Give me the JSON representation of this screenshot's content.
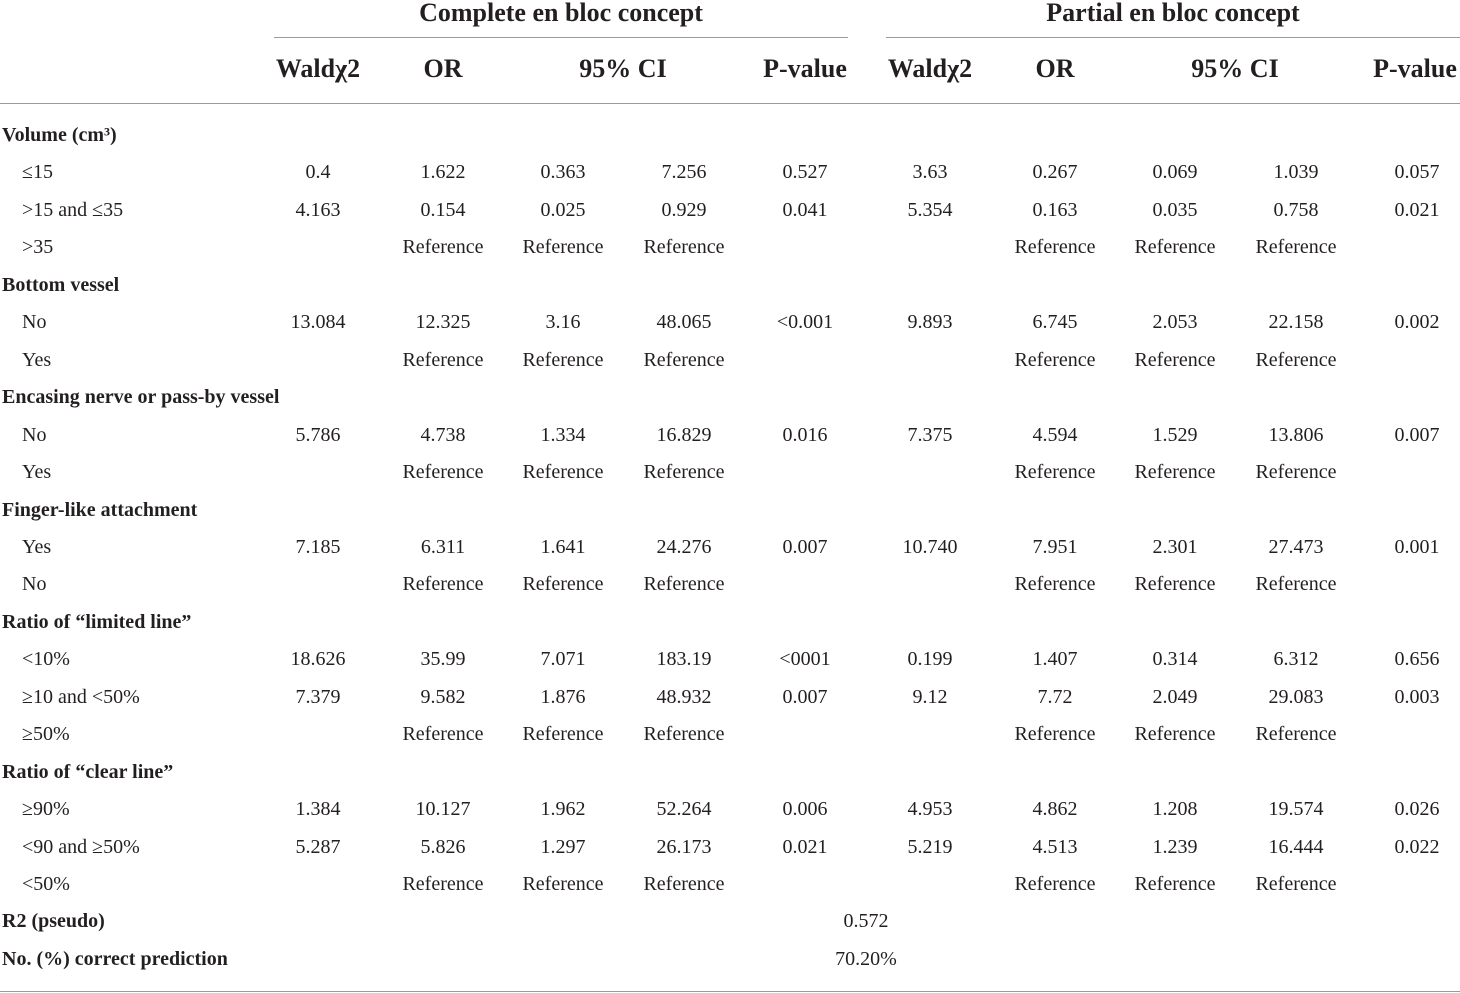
{
  "groups": [
    {
      "title": "Complete en bloc concept"
    },
    {
      "title": "Partial en bloc concept"
    }
  ],
  "column_headers": [
    "Waldχ2",
    "OR",
    "95% CI",
    "P-value",
    "Waldχ2",
    "OR",
    "95% CI",
    "P-value"
  ],
  "rows": [
    {
      "type": "section",
      "label": "Volume (cm³)"
    },
    {
      "type": "item",
      "label": "≤15",
      "values": [
        "0.4",
        "1.622",
        "0.363",
        "7.256",
        "0.527",
        "3.63",
        "0.267",
        "0.069",
        "1.039",
        "0.057"
      ]
    },
    {
      "type": "item",
      "label": ">15 and ≤35",
      "values": [
        "4.163",
        "0.154",
        "0.025",
        "0.929",
        "0.041",
        "5.354",
        "0.163",
        "0.035",
        "0.758",
        "0.021"
      ]
    },
    {
      "type": "item",
      "label": ">35",
      "values": [
        "",
        "Reference",
        "Reference",
        "Reference",
        "",
        "",
        "Reference",
        "Reference",
        "Reference",
        ""
      ]
    },
    {
      "type": "section",
      "label": "Bottom vessel"
    },
    {
      "type": "item",
      "label": "No",
      "values": [
        "13.084",
        "12.325",
        "3.16",
        "48.065",
        "<0.001",
        "9.893",
        "6.745",
        "2.053",
        "22.158",
        "0.002"
      ]
    },
    {
      "type": "item",
      "label": "Yes",
      "values": [
        "",
        "Reference",
        "Reference",
        "Reference",
        "",
        "",
        "Reference",
        "Reference",
        "Reference",
        ""
      ]
    },
    {
      "type": "section",
      "label": "Encasing nerve or pass-by vessel"
    },
    {
      "type": "item",
      "label": "No",
      "values": [
        "5.786",
        "4.738",
        "1.334",
        "16.829",
        "0.016",
        "7.375",
        "4.594",
        "1.529",
        "13.806",
        "0.007"
      ]
    },
    {
      "type": "item",
      "label": "Yes",
      "values": [
        "",
        "Reference",
        "Reference",
        "Reference",
        "",
        "",
        "Reference",
        "Reference",
        "Reference",
        ""
      ]
    },
    {
      "type": "section",
      "label": "Finger-like attachment"
    },
    {
      "type": "item",
      "label": "Yes",
      "values": [
        "7.185",
        "6.311",
        "1.641",
        "24.276",
        "0.007",
        "10.740",
        "7.951",
        "2.301",
        "27.473",
        "0.001"
      ]
    },
    {
      "type": "item",
      "label": "No",
      "values": [
        "",
        "Reference",
        "Reference",
        "Reference",
        "",
        "",
        "Reference",
        "Reference",
        "Reference",
        ""
      ]
    },
    {
      "type": "section",
      "label": "Ratio of “limited line”"
    },
    {
      "type": "item",
      "label": "<10%",
      "values": [
        "18.626",
        "35.99",
        "7.071",
        "183.19",
        "<0001",
        "0.199",
        "1.407",
        "0.314",
        "6.312",
        "0.656"
      ]
    },
    {
      "type": "item",
      "label": "≥10 and <50%",
      "values": [
        "7.379",
        "9.582",
        "1.876",
        "48.932",
        "0.007",
        "9.12",
        "7.72",
        "2.049",
        "29.083",
        "0.003"
      ]
    },
    {
      "type": "item",
      "label": "≥50%",
      "values": [
        "",
        "Reference",
        "Reference",
        "Reference",
        "",
        "",
        "Reference",
        "Reference",
        "Reference",
        ""
      ]
    },
    {
      "type": "section",
      "label": "Ratio of “clear line”"
    },
    {
      "type": "item",
      "label": "≥90%",
      "values": [
        "1.384",
        "10.127",
        "1.962",
        "52.264",
        "0.006",
        "4.953",
        "4.862",
        "1.208",
        "19.574",
        "0.026"
      ]
    },
    {
      "type": "item",
      "label": "<90 and ≥50%",
      "values": [
        "5.287",
        "5.826",
        "1.297",
        "26.173",
        "0.021",
        "5.219",
        "4.513",
        "1.239",
        "16.444",
        "0.022"
      ]
    },
    {
      "type": "item",
      "label": "<50%",
      "values": [
        "",
        "Reference",
        "Reference",
        "Reference",
        "",
        "",
        "Reference",
        "Reference",
        "Reference",
        ""
      ]
    },
    {
      "type": "summary",
      "label": "R2 (pseudo)",
      "value": "0.572"
    },
    {
      "type": "summary",
      "label": "No. (%) correct prediction",
      "value": "70.20%"
    }
  ]
}
